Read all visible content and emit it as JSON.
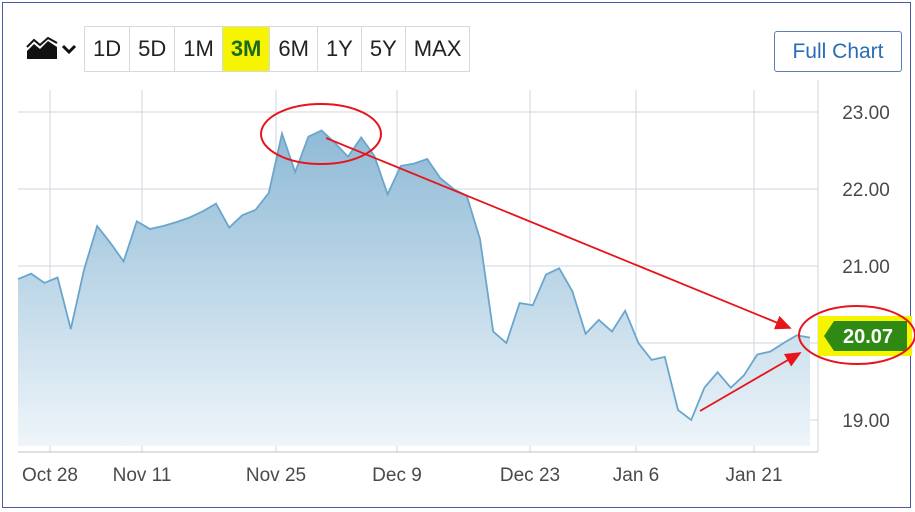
{
  "toolbar": {
    "chart_type_icon": "area-chart-icon",
    "dropdown_icon": "chevron-down-icon",
    "ranges": [
      "1D",
      "5D",
      "1M",
      "3M",
      "6M",
      "1Y",
      "5Y",
      "MAX"
    ],
    "active_range": "3M",
    "full_chart_label": "Full Chart"
  },
  "current_price_label": "20.07",
  "colors": {
    "line": "#6aa6cc",
    "area_top": "#8fbad6",
    "area_bottom": "#eef5fa",
    "grid": "#cfd7df",
    "annotation": "#e8141b",
    "highlight": "#f6f400",
    "price_badge": "#2f8a14"
  },
  "chart_data": {
    "type": "area",
    "x_tick_labels": [
      "Oct 28",
      "Nov 11",
      "Nov 25",
      "Dec 9",
      "Dec 23",
      "Jan 6",
      "Jan 21"
    ],
    "y_tick_labels": [
      "23.00",
      "22.00",
      "21.00",
      "19.00"
    ],
    "ylim": [
      18.7,
      23.3
    ],
    "grid": true,
    "values": [
      20.83,
      20.9,
      20.78,
      20.85,
      20.18,
      20.95,
      21.52,
      21.3,
      21.06,
      21.58,
      21.48,
      21.52,
      21.57,
      21.63,
      21.71,
      21.81,
      21.5,
      21.66,
      21.73,
      21.95,
      22.72,
      22.22,
      22.68,
      22.76,
      22.6,
      22.42,
      22.67,
      22.43,
      21.93,
      22.3,
      22.33,
      22.39,
      22.14,
      22.0,
      21.91,
      21.35,
      20.15,
      20.0,
      20.52,
      20.49,
      20.89,
      20.97,
      20.67,
      20.12,
      20.3,
      20.15,
      20.42,
      20.0,
      19.78,
      19.82,
      19.13,
      19.0,
      19.42,
      19.62,
      19.42,
      19.58,
      19.85,
      19.89,
      20.0,
      20.1,
      20.07
    ],
    "annotations": [
      {
        "type": "ellipse",
        "around": "peak"
      },
      {
        "type": "ellipse",
        "around": "current price"
      },
      {
        "type": "arrow",
        "from": "peak",
        "to": "current price"
      },
      {
        "type": "arrow",
        "from": "January low",
        "to": "current price"
      }
    ]
  }
}
